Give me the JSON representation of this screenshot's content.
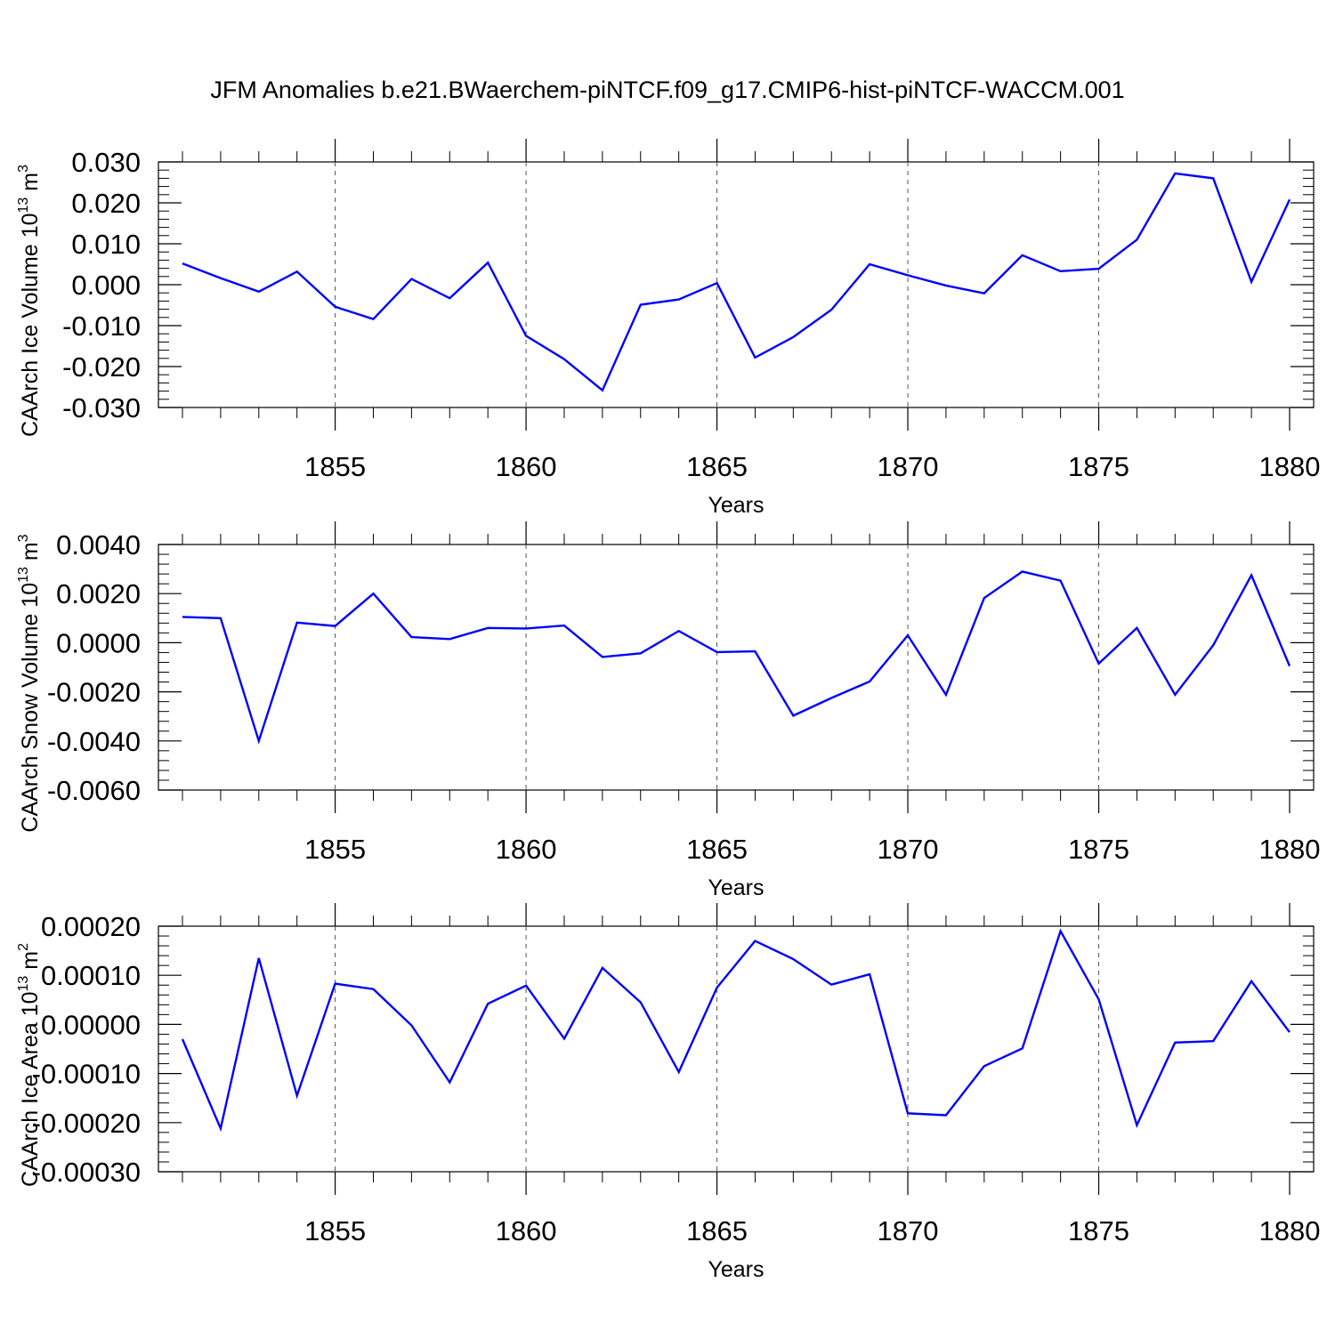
{
  "title": "JFM Anomalies b.e21.BWaerchem-piNTCF.f09_g17.CMIP6-hist-piNTCF-WACCM.001",
  "chart_data": [
    {
      "type": "line",
      "ylabel": "CAArch Ice Volume 10",
      "ylabel_sup": "13",
      "ylabel_unit": "m",
      "ylabel_unit_sup": "3",
      "xlabel": "Years",
      "xlim": [
        1851,
        1880
      ],
      "ylim": [
        -0.03,
        0.03
      ],
      "y_ticks": [
        "0.030",
        "0.020",
        "0.010",
        "0.000",
        "-0.010",
        "-0.020",
        "-0.030"
      ],
      "y_tick_values": [
        0.03,
        0.02,
        0.01,
        0.0,
        -0.01,
        -0.02,
        -0.03
      ],
      "x_ticks": [
        "1855",
        "1860",
        "1865",
        "1870",
        "1875",
        "1880"
      ],
      "x_tick_values": [
        1855,
        1860,
        1865,
        1870,
        1875,
        1880
      ],
      "line_color": "#0000ff",
      "x": [
        1851,
        1852,
        1853,
        1854,
        1855,
        1856,
        1857,
        1858,
        1859,
        1860,
        1861,
        1862,
        1863,
        1864,
        1865,
        1866,
        1867,
        1868,
        1869,
        1870,
        1871,
        1872,
        1873,
        1874,
        1875,
        1876,
        1877,
        1878,
        1879,
        1880
      ],
      "values": [
        0.0052,
        0.0016,
        -0.0017,
        0.0032,
        -0.0054,
        -0.0084,
        0.0014,
        -0.0033,
        0.0054,
        -0.0125,
        -0.0182,
        -0.0258,
        -0.0049,
        -0.0036,
        0.0004,
        -0.0178,
        -0.0128,
        -0.0061,
        0.005,
        0.0023,
        -0.0002,
        -0.0021,
        0.0072,
        0.0033,
        0.0039,
        0.011,
        0.0272,
        0.026,
        0.0007,
        0.0208
      ]
    },
    {
      "type": "line",
      "ylabel": "CAArch Snow Volume 10",
      "ylabel_sup": "13",
      "ylabel_unit": "m",
      "ylabel_unit_sup": "3",
      "xlabel": "Years",
      "xlim": [
        1851,
        1880
      ],
      "ylim": [
        -0.006,
        0.004
      ],
      "y_ticks": [
        "0.0040",
        "0.0020",
        "0.0000",
        "-0.0020",
        "-0.0040",
        "-0.0060"
      ],
      "y_tick_values": [
        0.004,
        0.002,
        0.0,
        -0.002,
        -0.004,
        -0.006
      ],
      "x_ticks": [
        "1855",
        "1860",
        "1865",
        "1870",
        "1875",
        "1880"
      ],
      "x_tick_values": [
        1855,
        1860,
        1865,
        1870,
        1875,
        1880
      ],
      "line_color": "#0000ff",
      "x": [
        1851,
        1852,
        1853,
        1854,
        1855,
        1856,
        1857,
        1858,
        1859,
        1860,
        1861,
        1862,
        1863,
        1864,
        1865,
        1866,
        1867,
        1868,
        1869,
        1870,
        1871,
        1872,
        1873,
        1874,
        1875,
        1876,
        1877,
        1878,
        1879,
        1880
      ],
      "values": [
        0.00105,
        0.001,
        -0.004,
        0.00082,
        0.00068,
        0.002,
        0.00023,
        0.00015,
        0.0006,
        0.00058,
        0.0007,
        -0.00058,
        -0.00043,
        0.00048,
        -0.00038,
        -0.00035,
        -0.00297,
        -0.00225,
        -0.00158,
        0.0003,
        -0.00212,
        0.00182,
        0.0029,
        0.00253,
        -0.00085,
        0.0006,
        -0.00212,
        -0.0001,
        0.00275,
        -0.00095
      ]
    },
    {
      "type": "line",
      "ylabel": "CAArch Ice Area 10",
      "ylabel_sup": "13",
      "ylabel_unit": "m",
      "ylabel_unit_sup": "2",
      "xlabel": "Years",
      "xlim": [
        1851,
        1880
      ],
      "ylim": [
        -0.0003,
        0.0002
      ],
      "y_ticks": [
        "0.00020",
        "0.00010",
        "0.00000",
        "-0.00010",
        "-0.00020",
        "-0.00030"
      ],
      "y_tick_values": [
        0.0002,
        0.0001,
        0.0,
        -0.0001,
        -0.0002,
        -0.0003
      ],
      "x_ticks": [
        "1855",
        "1860",
        "1865",
        "1870",
        "1875",
        "1880"
      ],
      "x_tick_values": [
        1855,
        1860,
        1865,
        1870,
        1875,
        1880
      ],
      "line_color": "#0000ff",
      "x": [
        1851,
        1852,
        1853,
        1854,
        1855,
        1856,
        1857,
        1858,
        1859,
        1860,
        1861,
        1862,
        1863,
        1864,
        1865,
        1866,
        1867,
        1868,
        1869,
        1870,
        1871,
        1872,
        1873,
        1874,
        1875,
        1876,
        1877,
        1878,
        1879,
        1880
      ],
      "values": [
        -3e-05,
        -0.000212,
        0.000135,
        -0.000145,
        8.3e-05,
        7.2e-05,
        -2e-06,
        -0.000118,
        4.2e-05,
        7.9e-05,
        -2.9e-05,
        0.000115,
        4.5e-05,
        -9.7e-05,
        7.5e-05,
        0.00017,
        0.000133,
        8.1e-05,
        0.000102,
        -0.000181,
        -0.000185,
        -8.5e-05,
        -4.9e-05,
        0.00019,
        5.1e-05,
        -0.000205,
        -3.7e-05,
        -3.4e-05,
        8.8e-05,
        -1.6e-05
      ]
    }
  ]
}
